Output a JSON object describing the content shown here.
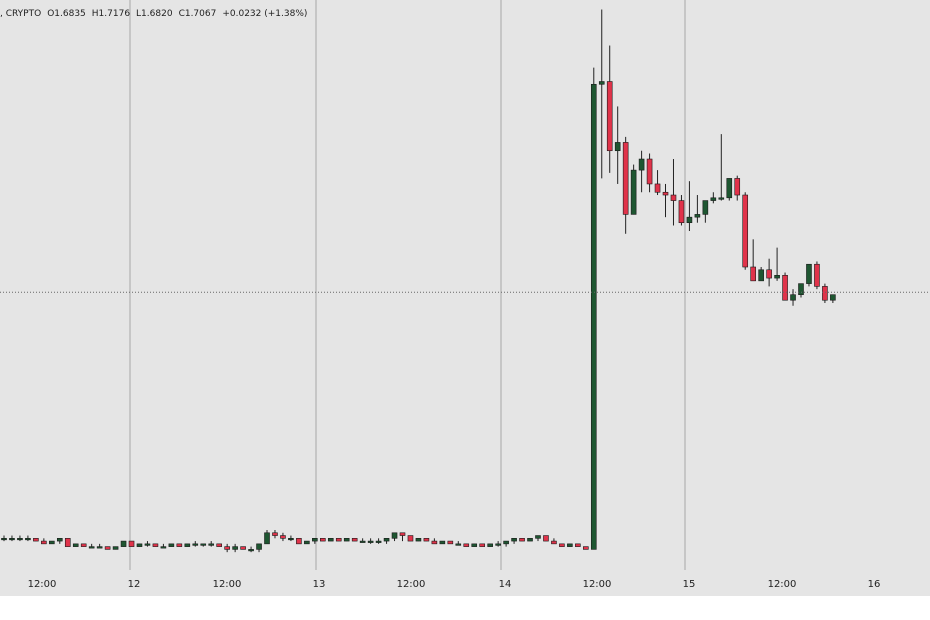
{
  "header": {
    "prefix": ", CRYPTO",
    "open": "O1.6835",
    "high": "H1.7176",
    "low": "L1.6820",
    "close": "C1.7067",
    "change": "+0.0232 (+1.38%)"
  },
  "colors": {
    "up": "#1e5631",
    "down": "#e0334a",
    "background": "#e5e5e5",
    "grid": "#a8a8a8",
    "wick": "#222222"
  },
  "chart_data": {
    "type": "candlestick",
    "grid": true,
    "x_ticks": [
      "12:00",
      "12",
      "12:00",
      "13",
      "12:00",
      "14",
      "12:00",
      "15",
      "12:00",
      "16"
    ],
    "y_axis_visible": false,
    "reference_line": "dotted horizontal at last price",
    "candles": [
      [
        1.0,
        1.01,
        0.99,
        1.0
      ],
      [
        1.0,
        1.01,
        0.99,
        1.0
      ],
      [
        1.0,
        1.01,
        0.99,
        1.0
      ],
      [
        1.0,
        1.01,
        0.99,
        1.0
      ],
      [
        1.0,
        1.0,
        0.99,
        0.99
      ],
      [
        0.99,
        1.0,
        0.98,
        0.98
      ],
      [
        0.98,
        0.99,
        0.98,
        0.99
      ],
      [
        0.99,
        1.0,
        0.98,
        1.0
      ],
      [
        1.0,
        1.0,
        0.97,
        0.97
      ],
      [
        0.97,
        0.98,
        0.97,
        0.98
      ],
      [
        0.98,
        0.98,
        0.97,
        0.97
      ],
      [
        0.97,
        0.98,
        0.97,
        0.97
      ],
      [
        0.97,
        0.98,
        0.97,
        0.97
      ],
      [
        0.97,
        0.97,
        0.96,
        0.96
      ],
      [
        0.96,
        0.97,
        0.96,
        0.97
      ],
      [
        0.97,
        0.99,
        0.97,
        0.99
      ],
      [
        0.99,
        0.99,
        0.97,
        0.97
      ],
      [
        0.97,
        0.98,
        0.97,
        0.98
      ],
      [
        0.98,
        0.99,
        0.97,
        0.98
      ],
      [
        0.98,
        0.98,
        0.97,
        0.97
      ],
      [
        0.97,
        0.98,
        0.97,
        0.97
      ],
      [
        0.97,
        0.98,
        0.97,
        0.98
      ],
      [
        0.98,
        0.98,
        0.97,
        0.97
      ],
      [
        0.97,
        0.98,
        0.97,
        0.98
      ],
      [
        0.98,
        0.99,
        0.97,
        0.98
      ],
      [
        0.98,
        0.98,
        0.97,
        0.98
      ],
      [
        0.98,
        0.99,
        0.97,
        0.98
      ],
      [
        0.98,
        0.98,
        0.97,
        0.97
      ],
      [
        0.97,
        0.98,
        0.95,
        0.96
      ],
      [
        0.96,
        0.98,
        0.95,
        0.97
      ],
      [
        0.97,
        0.97,
        0.96,
        0.96
      ],
      [
        0.96,
        0.97,
        0.95,
        0.96
      ],
      [
        0.96,
        0.98,
        0.95,
        0.98
      ],
      [
        0.98,
        1.03,
        0.98,
        1.02
      ],
      [
        1.02,
        1.03,
        1.0,
        1.01
      ],
      [
        1.01,
        1.02,
        0.99,
        1.0
      ],
      [
        1.0,
        1.01,
        0.99,
        1.0
      ],
      [
        1.0,
        1.0,
        0.98,
        0.98
      ],
      [
        0.98,
        0.99,
        0.98,
        0.99
      ],
      [
        0.99,
        1.0,
        0.98,
        1.0
      ],
      [
        1.0,
        1.0,
        0.99,
        0.99
      ],
      [
        0.99,
        1.0,
        0.99,
        1.0
      ],
      [
        1.0,
        1.0,
        0.99,
        0.99
      ],
      [
        0.99,
        1.0,
        0.99,
        1.0
      ],
      [
        1.0,
        1.0,
        0.99,
        0.99
      ],
      [
        0.99,
        1.0,
        0.99,
        0.99
      ],
      [
        0.99,
        1.0,
        0.98,
        0.99
      ],
      [
        0.99,
        1.0,
        0.98,
        0.99
      ],
      [
        0.99,
        1.0,
        0.98,
        1.0
      ],
      [
        1.0,
        1.02,
        0.99,
        1.02
      ],
      [
        1.02,
        1.02,
        0.99,
        1.01
      ],
      [
        1.01,
        1.01,
        0.99,
        0.99
      ],
      [
        0.99,
        1.0,
        0.99,
        1.0
      ],
      [
        1.0,
        1.0,
        0.99,
        0.99
      ],
      [
        0.99,
        1.0,
        0.98,
        0.98
      ],
      [
        0.98,
        0.99,
        0.98,
        0.99
      ],
      [
        0.99,
        0.99,
        0.98,
        0.98
      ],
      [
        0.98,
        0.99,
        0.98,
        0.98
      ],
      [
        0.98,
        0.98,
        0.97,
        0.97
      ],
      [
        0.97,
        0.98,
        0.97,
        0.98
      ],
      [
        0.98,
        0.98,
        0.97,
        0.97
      ],
      [
        0.97,
        0.98,
        0.97,
        0.98
      ],
      [
        0.98,
        0.99,
        0.97,
        0.98
      ],
      [
        0.98,
        0.99,
        0.97,
        0.99
      ],
      [
        0.99,
        1.0,
        0.98,
        1.0
      ],
      [
        1.0,
        1.0,
        0.99,
        0.99
      ],
      [
        0.99,
        1.0,
        0.99,
        1.0
      ],
      [
        1.0,
        1.01,
        0.99,
        1.01
      ],
      [
        1.01,
        1.01,
        0.99,
        0.99
      ],
      [
        0.99,
        1.0,
        0.98,
        0.98
      ],
      [
        0.98,
        0.98,
        0.97,
        0.97
      ],
      [
        0.97,
        0.98,
        0.97,
        0.98
      ],
      [
        0.98,
        0.98,
        0.97,
        0.97
      ],
      [
        0.97,
        0.97,
        0.96,
        0.96
      ],
      [
        0.96,
        2.7,
        0.96,
        2.64
      ],
      [
        2.64,
        2.91,
        2.3,
        2.65
      ],
      [
        2.65,
        2.78,
        2.32,
        2.4
      ],
      [
        2.4,
        2.56,
        2.28,
        2.43
      ],
      [
        2.43,
        2.45,
        2.1,
        2.17
      ],
      [
        2.17,
        2.35,
        2.17,
        2.33
      ],
      [
        2.33,
        2.4,
        2.25,
        2.37
      ],
      [
        2.37,
        2.39,
        2.25,
        2.28
      ],
      [
        2.28,
        2.33,
        2.24,
        2.25
      ],
      [
        2.25,
        2.28,
        2.16,
        2.24
      ],
      [
        2.24,
        2.37,
        2.13,
        2.22
      ],
      [
        2.22,
        2.24,
        2.13,
        2.14
      ],
      [
        2.14,
        2.29,
        2.11,
        2.16
      ],
      [
        2.16,
        2.24,
        2.14,
        2.17
      ],
      [
        2.17,
        2.21,
        2.14,
        2.22
      ],
      [
        2.22,
        2.25,
        2.21,
        2.23
      ],
      [
        2.23,
        2.46,
        2.22,
        2.23
      ],
      [
        2.23,
        2.3,
        2.22,
        2.3
      ],
      [
        2.3,
        2.31,
        2.22,
        2.24
      ],
      [
        2.24,
        2.25,
        1.97,
        1.98
      ],
      [
        1.98,
        2.08,
        1.94,
        1.93
      ],
      [
        1.93,
        1.98,
        1.93,
        1.97
      ],
      [
        1.97,
        2.01,
        1.91,
        1.94
      ],
      [
        1.94,
        2.05,
        1.93,
        1.95
      ],
      [
        1.95,
        1.96,
        1.87,
        1.86
      ],
      [
        1.86,
        1.9,
        1.84,
        1.88
      ],
      [
        1.88,
        1.92,
        1.87,
        1.92
      ],
      [
        1.92,
        1.98,
        1.91,
        1.99
      ],
      [
        1.99,
        2.0,
        1.9,
        1.91
      ],
      [
        1.91,
        1.92,
        1.85,
        1.86
      ],
      [
        1.86,
        1.88,
        1.85,
        1.88
      ]
    ],
    "candle_order": "[open, high, low, close]"
  }
}
